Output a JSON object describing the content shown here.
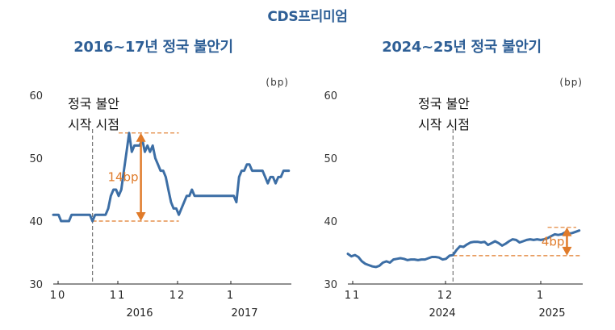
{
  "title": "CDS프리미엄",
  "chart_data": [
    {
      "type": "line",
      "title": "2016~17년 정국 불안기",
      "unit": "(bp)",
      "ylim": [
        30,
        60
      ],
      "yticks": [
        "60",
        "50",
        "40",
        "30"
      ],
      "x_month_ticks": [
        "10",
        "11",
        "12",
        "1"
      ],
      "x_year_ticks": [
        "2016",
        "2017"
      ],
      "annotation_label": "정국 불안\n시작 시점",
      "range_label": "14bp",
      "range_low": 40,
      "range_high": 54,
      "event_x": 15,
      "xlim": [
        0,
        91
      ],
      "x": [
        0,
        1,
        2,
        3,
        4,
        5,
        6,
        7,
        8,
        9,
        10,
        11,
        12,
        13,
        14,
        15,
        16,
        17,
        18,
        19,
        20,
        21,
        22,
        23,
        24,
        25,
        26,
        27,
        28,
        29,
        30,
        31,
        32,
        33,
        34,
        35,
        36,
        37,
        38,
        39,
        40,
        41,
        42,
        43,
        44,
        45,
        46,
        47,
        48,
        49,
        50,
        51,
        52,
        53,
        54,
        55,
        56,
        57,
        58,
        59,
        60,
        61,
        62,
        63,
        64,
        65,
        66,
        67,
        68,
        69,
        70,
        71,
        72,
        73,
        74,
        75,
        76,
        77,
        78,
        79,
        80,
        81,
        82,
        83,
        84,
        85,
        86,
        87,
        88,
        89,
        90
      ],
      "values": [
        41,
        41,
        41,
        40,
        40,
        40,
        40,
        41,
        41,
        41,
        41,
        41,
        41,
        41,
        41,
        40,
        41,
        41,
        41,
        41,
        41,
        42,
        44,
        45,
        45,
        44,
        45,
        48,
        51,
        54,
        51,
        52,
        52,
        52,
        53,
        51,
        52,
        51,
        52,
        50,
        49,
        48,
        48,
        47,
        45,
        43,
        42,
        42,
        41,
        42,
        43,
        44,
        44,
        45,
        44,
        44,
        44,
        44,
        44,
        44,
        44,
        44,
        44,
        44,
        44,
        44,
        44,
        44,
        44,
        44,
        43,
        47,
        48,
        48,
        49,
        49,
        48,
        48,
        48,
        48,
        48,
        47,
        46,
        47,
        47,
        46,
        47,
        47,
        48,
        48,
        48
      ]
    },
    {
      "type": "line",
      "title": "2024~25년 정국 불안기",
      "unit": "(bp)",
      "ylim": [
        30,
        60
      ],
      "yticks": [
        "60",
        "50",
        "40",
        "30"
      ],
      "x_month_ticks": [
        "11",
        "12",
        "1"
      ],
      "x_year_ticks": [
        "2024",
        "2025"
      ],
      "annotation_label": "정국 불안\n시작 시점",
      "range_label": "4bp",
      "range_low": 34.5,
      "range_high": 39,
      "event_x": 30,
      "xlim": [
        0,
        67
      ],
      "x": [
        0,
        1,
        2,
        3,
        4,
        5,
        6,
        7,
        8,
        9,
        10,
        11,
        12,
        13,
        14,
        15,
        16,
        17,
        18,
        19,
        20,
        21,
        22,
        23,
        24,
        25,
        26,
        27,
        28,
        29,
        30,
        31,
        32,
        33,
        34,
        35,
        36,
        37,
        38,
        39,
        40,
        41,
        42,
        43,
        44,
        45,
        46,
        47,
        48,
        49,
        50,
        51,
        52,
        53,
        54,
        55,
        56,
        57,
        58,
        59,
        60,
        61,
        62,
        63,
        64,
        65,
        66
      ],
      "values": [
        34.8,
        34.4,
        34.6,
        34.3,
        33.6,
        33.2,
        33.0,
        32.8,
        32.7,
        32.9,
        33.4,
        33.6,
        33.4,
        33.9,
        34.0,
        34.1,
        34.0,
        33.8,
        33.9,
        33.9,
        33.8,
        33.9,
        33.9,
        34.1,
        34.3,
        34.3,
        34.2,
        33.9,
        34.0,
        34.5,
        34.6,
        35.4,
        36.0,
        35.9,
        36.3,
        36.6,
        36.7,
        36.7,
        36.6,
        36.7,
        36.2,
        36.5,
        36.8,
        36.5,
        36.1,
        36.4,
        36.8,
        37.1,
        37.0,
        36.6,
        36.8,
        37.0,
        37.1,
        37.0,
        37.1,
        37.0,
        37.1,
        37.3,
        37.6,
        37.9,
        37.8,
        37.9,
        38.2,
        38.0,
        38.1,
        38.3,
        38.5
      ]
    }
  ]
}
